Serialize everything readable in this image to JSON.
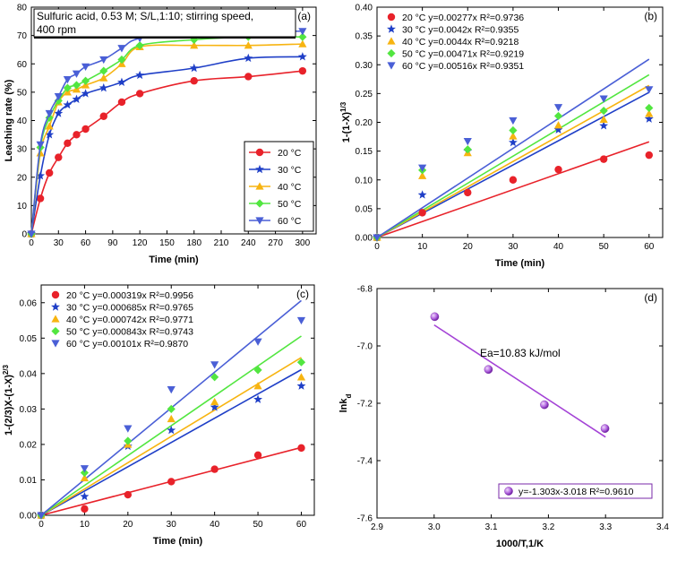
{
  "colors": {
    "20": "#e8222a",
    "30": "#1f3fc7",
    "40": "#f7b411",
    "50": "#52e640",
    "60": "#4a5fd6",
    "d": "#a443d6"
  },
  "chart_data": [
    {
      "id": "a",
      "type": "line",
      "panel_label": "(a)",
      "title": "",
      "info_lines": [
        "Sulfuric acid, 0.53 M; S/L,1:10; stirring speed,",
        "400 rpm"
      ],
      "xlabel": "Time (min)",
      "ylabel": "Leaching rate (%)",
      "xlim": [
        0,
        315
      ],
      "ylim": [
        0,
        80
      ],
      "xticks": [
        0,
        30,
        60,
        90,
        120,
        150,
        180,
        210,
        240,
        270,
        300
      ],
      "yticks": [
        0,
        10,
        20,
        30,
        40,
        50,
        60,
        70,
        80
      ],
      "x": [
        0,
        10,
        20,
        30,
        40,
        50,
        60,
        80,
        100,
        120,
        180,
        240,
        300
      ],
      "series": [
        {
          "name": "20 °C",
          "marker": "circle",
          "color": "#e8222a",
          "values": [
            0,
            12.5,
            21.5,
            27,
            32,
            35,
            37,
            41.5,
            46.5,
            49.5,
            54,
            55.5,
            57.5
          ]
        },
        {
          "name": "30 °C",
          "marker": "star",
          "color": "#1f3fc7",
          "values": [
            0,
            20.5,
            35,
            42.5,
            45.5,
            47.5,
            49.5,
            51.5,
            53.5,
            56,
            58.5,
            62,
            62.5
          ]
        },
        {
          "name": "40 °C",
          "marker": "triangle-up",
          "color": "#f7b411",
          "values": [
            0,
            28.5,
            38,
            46.5,
            50,
            51,
            52.5,
            55,
            60,
            66,
            66.5,
            66.5,
            67
          ]
        },
        {
          "name": "50 °C",
          "marker": "diamond",
          "color": "#52e640",
          "values": [
            0,
            30.5,
            41,
            47,
            51.5,
            52.5,
            54,
            57.5,
            61.5,
            66.5,
            68.5,
            69.5,
            69.5
          ]
        },
        {
          "name": "60 °C",
          "marker": "triangle-down",
          "color": "#4a5fd6",
          "values": [
            0,
            31.5,
            42.5,
            48.5,
            54.5,
            56.5,
            59,
            61.5,
            65.5,
            69,
            70.5,
            71.5,
            71.5
          ]
        }
      ]
    },
    {
      "id": "b",
      "type": "scatter",
      "panel_label": "(b)",
      "title": "",
      "xlabel": "Time (min)",
      "ylabel": "1-(1-X)",
      "ylabel_sup": "1/3",
      "xlim": [
        0,
        63
      ],
      "ylim": [
        0,
        0.4
      ],
      "xticks": [
        0,
        10,
        20,
        30,
        40,
        50,
        60
      ],
      "yticks": [
        0.0,
        0.05,
        0.1,
        0.15,
        0.2,
        0.25,
        0.3,
        0.35,
        0.4
      ],
      "ytick_labels": [
        "0.00",
        "0.05",
        "0.10",
        "0.15",
        "0.20",
        "0.25",
        "0.30",
        "0.35",
        "0.40"
      ],
      "x": [
        0,
        10,
        20,
        30,
        40,
        50,
        60
      ],
      "series": [
        {
          "name": "20 °C",
          "label": "20 °C  y=0.00277x  R²=0.9736",
          "marker": "circle",
          "color": "#e8222a",
          "slope": 0.00277,
          "values": [
            0,
            0.043,
            0.078,
            0.1,
            0.118,
            0.136,
            0.143
          ]
        },
        {
          "name": "30 °C",
          "label": "30 °C  y=0.0042x    R²=0.9355",
          "marker": "star",
          "color": "#1f3fc7",
          "slope": 0.0042,
          "values": [
            0,
            0.074,
            0.15,
            0.165,
            0.187,
            0.194,
            0.206
          ]
        },
        {
          "name": "40 °C",
          "label": "40 °C  y=0.0044x    R²=0.9218",
          "marker": "triangle-up",
          "color": "#f7b411",
          "slope": 0.0044,
          "values": [
            0,
            0.107,
            0.147,
            0.176,
            0.195,
            0.205,
            0.215
          ]
        },
        {
          "name": "50 °C",
          "label": "50 °C  y=0.00471x  R²=0.9219",
          "marker": "diamond",
          "color": "#52e640",
          "slope": 0.00471,
          "values": [
            0,
            0.117,
            0.153,
            0.186,
            0.211,
            0.22,
            0.225
          ]
        },
        {
          "name": "60 °C",
          "label": "60 °C  y=0.00516x  R²=0.9351",
          "marker": "triangle-down",
          "color": "#4a5fd6",
          "slope": 0.00516,
          "values": [
            0,
            0.121,
            0.167,
            0.203,
            0.226,
            0.241,
            0.257
          ]
        }
      ]
    },
    {
      "id": "c",
      "type": "scatter",
      "panel_label": "(c)",
      "title": "",
      "xlabel": "Time (min)",
      "ylabel": "1-(2/3)X-(1-X)",
      "ylabel_sup": "2/3",
      "xlim": [
        0,
        63
      ],
      "ylim": [
        0,
        0.065
      ],
      "xticks": [
        0,
        10,
        20,
        30,
        40,
        50,
        60
      ],
      "yticks": [
        0.0,
        0.01,
        0.02,
        0.03,
        0.04,
        0.05,
        0.06
      ],
      "ytick_labels": [
        "0.00",
        "0.01",
        "0.02",
        "0.03",
        "0.04",
        "0.05",
        "0.06"
      ],
      "x": [
        0,
        10,
        20,
        30,
        40,
        50,
        60
      ],
      "series": [
        {
          "name": "20 °C",
          "label": "20 °C  y=0.000319x  R²=0.9956",
          "marker": "circle",
          "color": "#e8222a",
          "slope": 0.000319,
          "values": [
            0,
            0.0018,
            0.0058,
            0.0095,
            0.013,
            0.017,
            0.019
          ]
        },
        {
          "name": "30 °C",
          "label": "30 °C  y=0.000685x  R²=0.9765",
          "marker": "star",
          "color": "#1f3fc7",
          "slope": 0.000685,
          "values": [
            0,
            0.0053,
            0.0195,
            0.024,
            0.0305,
            0.0327,
            0.0365
          ]
        },
        {
          "name": "40 °C",
          "label": "40 °C  y=0.000742x  R²=0.9771",
          "marker": "triangle-up",
          "color": "#f7b411",
          "slope": 0.000742,
          "values": [
            0,
            0.0105,
            0.02,
            0.0272,
            0.032,
            0.0365,
            0.039
          ]
        },
        {
          "name": "50 °C",
          "label": "50 °C  y=0.000843x  R²=0.9743",
          "marker": "diamond",
          "color": "#52e640",
          "slope": 0.000843,
          "values": [
            0,
            0.012,
            0.021,
            0.03,
            0.039,
            0.041,
            0.0432
          ]
        },
        {
          "name": "60 °C",
          "label": "60 °C  y=0.00101x    R²=0.9870",
          "marker": "triangle-down",
          "color": "#4a5fd6",
          "slope": 0.00101,
          "values": [
            0,
            0.0132,
            0.0245,
            0.0355,
            0.0425,
            0.049,
            0.055
          ]
        }
      ]
    },
    {
      "id": "d",
      "type": "scatter",
      "panel_label": "(d)",
      "title": "",
      "annotation": "Ea=10.83 kJ/mol",
      "xlabel": "1000/T,1/K",
      "ylabel": "lnk",
      "ylabel_sub": "d",
      "xlim": [
        2.9,
        3.4
      ],
      "ylim": [
        -7.6,
        -6.8
      ],
      "xticks": [
        2.9,
        3.0,
        3.1,
        3.2,
        3.3,
        3.4
      ],
      "xtick_labels": [
        "2.9",
        "3.0",
        "3.1",
        "3.2",
        "3.3",
        "3.4"
      ],
      "yticks": [
        -7.6,
        -7.4,
        -7.2,
        -7.0,
        -6.8
      ],
      "ytick_labels": [
        "-7.6",
        "-7.4",
        "-7.2",
        "-7.0",
        "-6.8"
      ],
      "x": [
        3.001,
        3.095,
        3.193,
        3.299
      ],
      "series": [
        {
          "name": "lnkd",
          "label": "y=-1.303x-3.018  R²=0.9610",
          "marker": "sphere",
          "color": "#a443d6",
          "slope": -1.303,
          "intercept": -3.018,
          "fit_x": [
            3.0,
            3.3
          ],
          "values": [
            -6.898,
            -7.082,
            -7.205,
            -7.288
          ]
        }
      ]
    }
  ]
}
